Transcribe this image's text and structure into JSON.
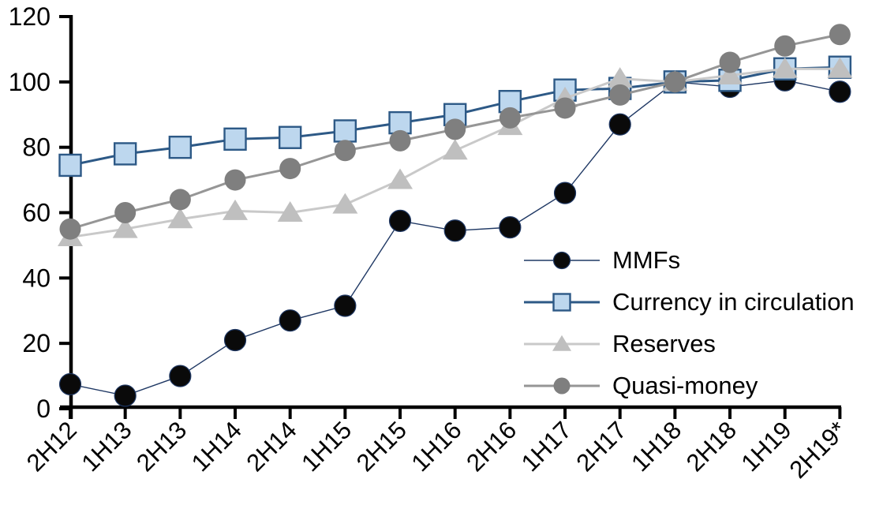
{
  "chart_data": {
    "type": "line",
    "title": "",
    "xlabel": "",
    "ylabel": "",
    "ylim": [
      0,
      120
    ],
    "yticks": [
      0,
      20,
      40,
      60,
      80,
      100,
      120
    ],
    "grid": false,
    "legend_position": "middle-right-inside",
    "categories": [
      "2H12",
      "1H13",
      "2H13",
      "1H14",
      "2H14",
      "1H15",
      "2H15",
      "1H16",
      "2H16",
      "1H17",
      "2H17",
      "1H18",
      "2H18",
      "1H19",
      "2H19*"
    ],
    "series": [
      {
        "name": "MMFs",
        "slug": "mmfs",
        "marker": "circle",
        "marker_fill": "#0a0a0a",
        "marker_stroke": "#1f3864",
        "line_color": "#1f3864",
        "line_width": 1.4,
        "values": [
          7.5,
          4,
          10,
          21,
          27,
          31.5,
          57.5,
          54.5,
          55.5,
          66,
          87,
          100,
          98.5,
          100.5,
          97
        ]
      },
      {
        "name": "Currency in circulation",
        "slug": "currency-in-circulation",
        "marker": "square",
        "marker_fill": "#bdd7ee",
        "marker_stroke": "#2d5986",
        "line_color": "#2d5986",
        "line_width": 3,
        "values": [
          74.5,
          78,
          80,
          82.5,
          83,
          85,
          87.5,
          90,
          94,
          97.5,
          98,
          100,
          100.5,
          104,
          104.5
        ]
      },
      {
        "name": "Reserves",
        "slug": "reserves",
        "marker": "triangle",
        "marker_fill": "#bfbfbf",
        "marker_stroke": "none",
        "line_color": "#c9c9c9",
        "line_width": 3,
        "values": [
          52.5,
          55,
          58,
          60.5,
          60,
          62.5,
          70,
          79,
          86.5,
          95,
          101,
          100,
          102,
          104,
          104
        ]
      },
      {
        "name": "Quasi-money",
        "slug": "quasi-money",
        "marker": "circle",
        "marker_fill": "#7f7f7f",
        "marker_stroke": "none",
        "line_color": "#969696",
        "line_width": 3,
        "values": [
          55,
          60,
          64,
          70,
          73.5,
          79,
          82,
          85.5,
          89,
          92,
          96,
          100,
          106,
          111,
          114.5
        ]
      }
    ],
    "axis_color": "#000000",
    "background_color": "#ffffff"
  }
}
